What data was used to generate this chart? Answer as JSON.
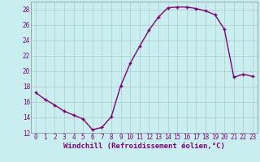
{
  "x": [
    0,
    1,
    2,
    3,
    4,
    5,
    6,
    7,
    8,
    9,
    10,
    11,
    12,
    13,
    14,
    15,
    16,
    17,
    18,
    19,
    20,
    21,
    22,
    23
  ],
  "y": [
    17.2,
    16.3,
    15.6,
    14.8,
    14.3,
    13.8,
    12.4,
    12.7,
    14.1,
    18.1,
    21.0,
    23.2,
    25.3,
    27.0,
    28.2,
    28.3,
    28.3,
    28.1,
    27.8,
    27.3,
    25.4,
    19.2,
    19.6,
    19.3
  ],
  "line_color": "#800080",
  "marker": "+",
  "marker_size": 3,
  "bg_color": "#c8eef0",
  "grid_color": "#b0c8c8",
  "xlabel": "Windchill (Refroidissement éolien,°C)",
  "xlim": [
    -0.5,
    23.5
  ],
  "ylim": [
    12,
    29
  ],
  "yticks": [
    12,
    14,
    16,
    18,
    20,
    22,
    24,
    26,
    28
  ],
  "xticks": [
    0,
    1,
    2,
    3,
    4,
    5,
    6,
    7,
    8,
    9,
    10,
    11,
    12,
    13,
    14,
    15,
    16,
    17,
    18,
    19,
    20,
    21,
    22,
    23
  ],
  "tick_fontsize": 5.5,
  "xlabel_fontsize": 6.5,
  "linewidth": 1.0
}
